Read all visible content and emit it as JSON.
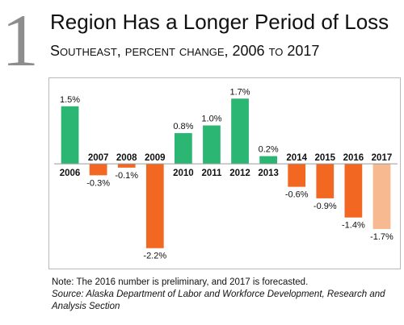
{
  "figure_number": "1",
  "title": "Region Has a Longer Period of Loss",
  "subtitle": "Southeast, percent change, 2006 to 2017",
  "note": "Note: The 2016 number is preliminary, and 2017 is forecasted.",
  "source": "Source: Alaska Department of Labor and Workforce Development, Research and Analysis Section",
  "colors": {
    "positive": "#2bb673",
    "negative": "#f26722",
    "forecast": "#f7b98f",
    "frame": "#b9b9b9"
  },
  "chart_data": {
    "type": "bar",
    "title": "Region Has a Longer Period of Loss",
    "subtitle": "Southeast, percent change, 2006 to 2017",
    "categories": [
      "2006",
      "2007",
      "2008",
      "2009",
      "2010",
      "2011",
      "2012",
      "2013",
      "2014",
      "2015",
      "2016",
      "2017"
    ],
    "values": [
      1.5,
      -0.3,
      -0.1,
      -2.2,
      0.8,
      1.0,
      1.7,
      0.2,
      -0.6,
      -0.9,
      -1.4,
      -1.7
    ],
    "labels": [
      "1.5%",
      "-0.3%",
      "-0.1%",
      "-2.2%",
      "0.8%",
      "1.0%",
      "1.7%",
      "0.2%",
      "-0.6%",
      "-0.9%",
      "-1.4%",
      "-1.7%"
    ],
    "ylim": [
      -2.5,
      2.0
    ],
    "xlabel": "",
    "ylabel": "",
    "forecast_category": "2017",
    "grid": false,
    "legend": "none"
  }
}
